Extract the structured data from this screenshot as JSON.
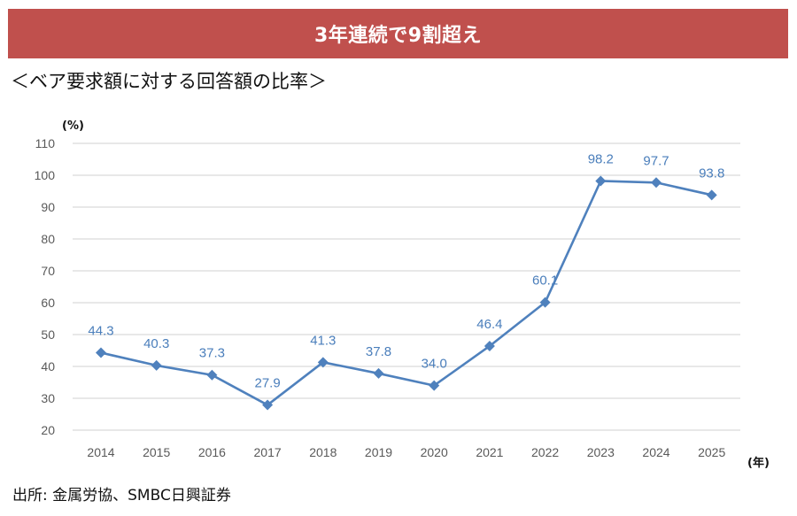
{
  "banner": {
    "title": "3年連続で9割超え",
    "color": "#c0504d"
  },
  "subtitle": "＜ベア要求額に対する回答額の比率＞",
  "source": "出所: 金属労協、SMBC日興証券",
  "chart_data": {
    "type": "line",
    "title": "＜ベア要求額に対する回答額の比率＞",
    "xlabel": "(年)",
    "ylabel": "(%)",
    "ylim": [
      20,
      110
    ],
    "yticks": [
      "20",
      "30",
      "40",
      "50",
      "60",
      "70",
      "80",
      "90",
      "100",
      "110"
    ],
    "grid": true,
    "categories": [
      "2014",
      "2015",
      "2016",
      "2017",
      "2018",
      "2019",
      "2020",
      "2021",
      "2022",
      "2023",
      "2024",
      "2025"
    ],
    "series": [
      {
        "name": "ベア要求額に対する回答額の比率",
        "values": [
          44.3,
          40.3,
          37.3,
          27.9,
          41.3,
          37.8,
          34.0,
          46.4,
          60.1,
          98.2,
          97.7,
          93.8
        ],
        "labels": [
          "44.3",
          "40.3",
          "37.3",
          "27.9",
          "41.3",
          "37.8",
          "34.0",
          "46.4",
          "60.1",
          "98.2",
          "97.7",
          "93.8"
        ],
        "color": "#4f81bd",
        "marker": "diamond"
      }
    ]
  }
}
